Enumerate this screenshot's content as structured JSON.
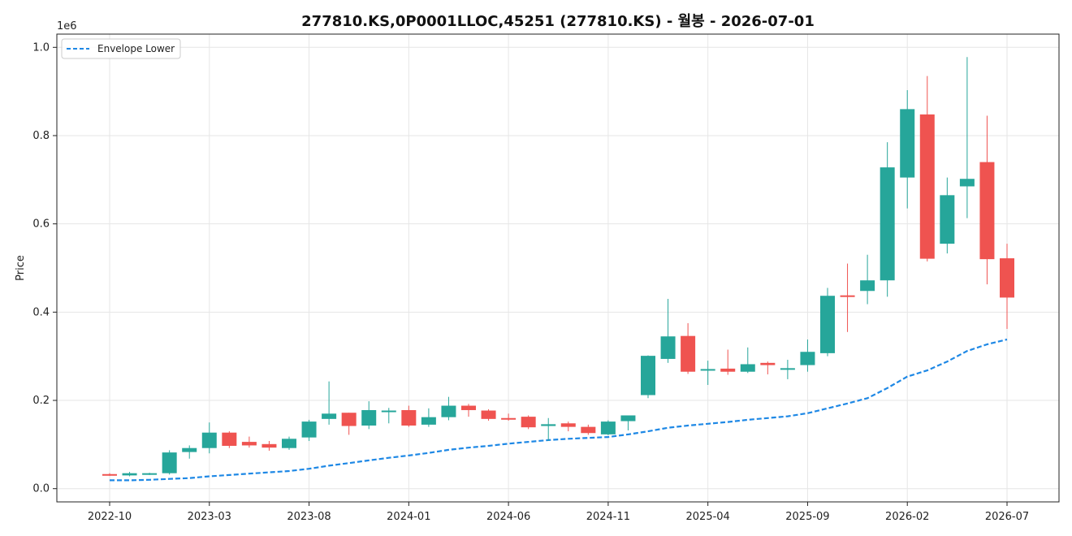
{
  "chart_data": {
    "type": "candlestick",
    "title": "277810.KS,0P0001LLOC,45251 (277810.KS) - 월봉 - 2026-07-01",
    "ylabel": "Price",
    "y_multiplier_label": "1e6",
    "ylim": [
      -30000,
      1030000
    ],
    "y_ticks": [
      0,
      200000,
      400000,
      600000,
      800000,
      1000000
    ],
    "y_tick_labels": [
      "0.0",
      "0.2",
      "0.4",
      "0.6",
      "0.8",
      "1.0"
    ],
    "x_tick_labels": [
      "2022-10",
      "2023-03",
      "2023-08",
      "2024-01",
      "2024-06",
      "2024-11",
      "2025-04",
      "2025-09",
      "2026-02",
      "2026-07"
    ],
    "grid": true,
    "legend_position": "top-left",
    "colors": {
      "up": "#26a69a",
      "down": "#ef5350",
      "envelope": "#1e88e5",
      "grid": "#e6e6e6"
    },
    "months": [
      "2022-10",
      "2022-11",
      "2022-12",
      "2023-01",
      "2023-02",
      "2023-03",
      "2023-04",
      "2023-05",
      "2023-06",
      "2023-07",
      "2023-08",
      "2023-09",
      "2023-10",
      "2023-11",
      "2023-12",
      "2024-01",
      "2024-02",
      "2024-03",
      "2024-04",
      "2024-05",
      "2024-06",
      "2024-07",
      "2024-08",
      "2024-09",
      "2024-10",
      "2024-11",
      "2024-12",
      "2025-01",
      "2025-02",
      "2025-03",
      "2025-04",
      "2025-05",
      "2025-06",
      "2025-07",
      "2025-08",
      "2025-09",
      "2025-10",
      "2025-11",
      "2025-12",
      "2026-01",
      "2026-02",
      "2026-03",
      "2026-04",
      "2026-05",
      "2026-06",
      "2026-07"
    ],
    "open": [
      33000,
      30000,
      33000,
      35000,
      83000,
      92000,
      127000,
      106000,
      101000,
      92000,
      116000,
      158000,
      172000,
      143000,
      176000,
      178000,
      145000,
      162000,
      188000,
      177000,
      160000,
      163000,
      142000,
      148000,
      140000,
      123000,
      153000,
      212000,
      294000,
      346000,
      268000,
      272000,
      265000,
      285000,
      271000,
      280000,
      307000,
      438000,
      448000,
      472000,
      705000,
      848000,
      555000,
      685000,
      740000,
      522000
    ],
    "high": [
      35000,
      38000,
      36000,
      87000,
      98000,
      150000,
      130000,
      118000,
      108000,
      118000,
      156000,
      243000,
      172000,
      198000,
      183000,
      188000,
      182000,
      208000,
      192000,
      180000,
      170000,
      166000,
      160000,
      152000,
      145000,
      155000,
      165000,
      302000,
      430000,
      375000,
      290000,
      315000,
      320000,
      288000,
      292000,
      338000,
      455000,
      510000,
      530000,
      785000,
      903000,
      935000,
      705000,
      978000,
      845000,
      555000
    ],
    "low": [
      29000,
      28000,
      31000,
      32000,
      68000,
      80000,
      92000,
      93000,
      86000,
      88000,
      108000,
      145000,
      122000,
      135000,
      148000,
      140000,
      140000,
      155000,
      163000,
      154000,
      154000,
      135000,
      108000,
      130000,
      122000,
      121000,
      132000,
      205000,
      285000,
      260000,
      235000,
      258000,
      262000,
      259000,
      248000,
      265000,
      300000,
      355000,
      418000,
      435000,
      635000,
      515000,
      533000,
      613000,
      463000,
      362000
    ],
    "close": [
      30000,
      35000,
      35000,
      82000,
      92000,
      127000,
      97000,
      98000,
      93000,
      113000,
      152000,
      170000,
      142000,
      178000,
      177000,
      143000,
      162000,
      188000,
      178000,
      158000,
      158000,
      139000,
      146000,
      140000,
      126000,
      152000,
      166000,
      301000,
      345000,
      265000,
      271000,
      265000,
      282000,
      280000,
      273000,
      310000,
      437000,
      435000,
      472000,
      728000,
      860000,
      521000,
      665000,
      702000,
      520000,
      433000
    ],
    "series": [
      {
        "name": "Envelope Lower",
        "style": "dashed",
        "values": [
          19000,
          19000,
          20000,
          22000,
          24000,
          28000,
          31000,
          34000,
          37000,
          40000,
          45000,
          52000,
          58000,
          64000,
          70000,
          75000,
          81000,
          88000,
          93000,
          97000,
          102000,
          106000,
          110000,
          113000,
          115000,
          117000,
          123000,
          130000,
          138000,
          143000,
          147000,
          151000,
          156000,
          160000,
          164000,
          171000,
          182000,
          193000,
          205000,
          228000,
          254000,
          268000,
          288000,
          312000,
          327000,
          338000
        ]
      }
    ]
  }
}
